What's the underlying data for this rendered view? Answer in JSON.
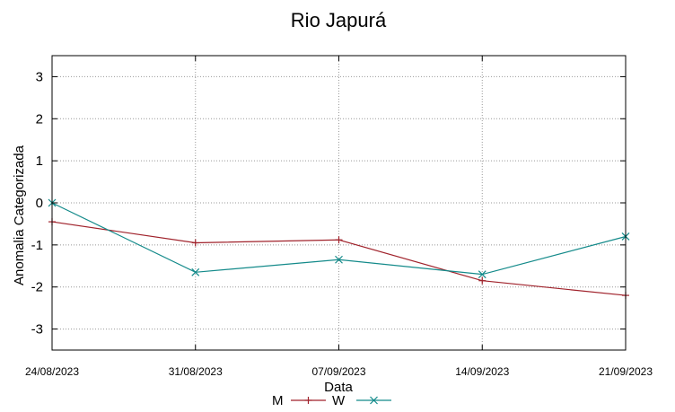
{
  "chart_data": {
    "type": "line",
    "title": "Rio Japurá",
    "xlabel": "Data",
    "ylabel": "Anomalia Categorizada",
    "categories": [
      "24/08/2023",
      "31/08/2023",
      "07/09/2023",
      "14/09/2023",
      "21/09/2023"
    ],
    "y_ticks": [
      "-3",
      "-2",
      "-1",
      "0",
      "1",
      "2",
      "3"
    ],
    "ylim": [
      -3.5,
      3.5
    ],
    "grid": true,
    "legend_position": "bottom-center",
    "series": [
      {
        "name": "M",
        "color": "#a0222b",
        "marker": "+",
        "values": [
          -0.45,
          -0.95,
          -0.88,
          -1.85,
          -2.2
        ]
      },
      {
        "name": "W",
        "color": "#138a8a",
        "marker": "x",
        "values": [
          0.0,
          -1.65,
          -1.35,
          -1.7,
          -0.8
        ]
      }
    ]
  }
}
